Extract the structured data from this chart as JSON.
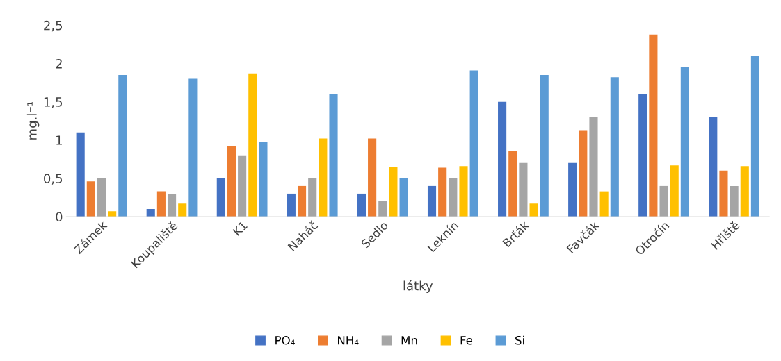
{
  "chart_data": {
    "type": "bar",
    "xlabel": "látky",
    "ylabel": "mg.l⁻¹",
    "categories": [
      "Zámek",
      "Koupaliště",
      "K1",
      "Naháč",
      "Sedlo",
      "Leknín",
      "Brťák",
      "Favčák",
      "Otročín",
      "Hřiště"
    ],
    "series": [
      {
        "name": "PO₄",
        "color": "#4472c4",
        "values": [
          1.1,
          0.1,
          0.5,
          0.3,
          0.3,
          0.4,
          1.5,
          0.7,
          1.6,
          1.3
        ]
      },
      {
        "name": "NH₄",
        "color": "#ed7d31",
        "values": [
          0.46,
          0.33,
          0.92,
          0.4,
          1.02,
          0.64,
          0.86,
          1.13,
          2.38,
          0.6
        ]
      },
      {
        "name": "Mn",
        "color": "#a5a5a5",
        "values": [
          0.5,
          0.3,
          0.8,
          0.5,
          0.2,
          0.5,
          0.7,
          1.3,
          0.4,
          0.4
        ]
      },
      {
        "name": "Fe",
        "color": "#ffc000",
        "values": [
          0.07,
          0.17,
          1.87,
          1.02,
          0.65,
          0.66,
          0.17,
          0.33,
          0.67,
          0.66
        ]
      },
      {
        "name": "Si",
        "color": "#5b9bd5",
        "values": [
          1.85,
          1.8,
          0.98,
          1.6,
          0.5,
          1.91,
          1.85,
          1.82,
          1.96,
          2.1
        ]
      }
    ],
    "ylim": [
      0,
      2.5
    ],
    "yticks": [
      0,
      {
        "value": 0.5,
        "label": "0,5"
      },
      1,
      {
        "value": 1.5,
        "label": "1,5"
      },
      2,
      {
        "value": 2.5,
        "label": "2,5"
      }
    ],
    "grid": false,
    "legend": "bottom"
  }
}
